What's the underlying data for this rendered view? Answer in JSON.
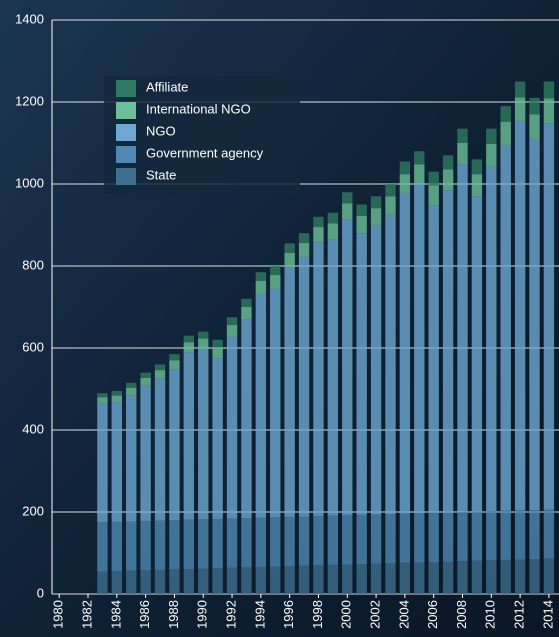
{
  "chart_data": {
    "type": "stacked_bar",
    "x": [
      1983,
      1984,
      1985,
      1986,
      1987,
      1988,
      1989,
      1990,
      1991,
      1992,
      1993,
      1994,
      1995,
      1996,
      1997,
      1998,
      1999,
      2000,
      2001,
      2002,
      2003,
      2004,
      2005,
      2006,
      2007,
      2008,
      2009,
      2010,
      2011,
      2012,
      2013,
      2014
    ],
    "series": [
      {
        "name": "State",
        "color": "#3f6e8f",
        "values": [
          55,
          56,
          57,
          58,
          59,
          60,
          61,
          62,
          63,
          64,
          65,
          66,
          67,
          68,
          69,
          70,
          71,
          72,
          73,
          74,
          75,
          76,
          77,
          78,
          79,
          80,
          81,
          82,
          83,
          84,
          85,
          86
        ]
      },
      {
        "name": "Government agency",
        "color": "#4f88b3",
        "values": [
          120,
          120,
          120,
          120,
          120,
          120,
          120,
          120,
          120,
          120,
          120,
          120,
          120,
          120,
          120,
          120,
          120,
          120,
          120,
          120,
          120,
          120,
          120,
          120,
          120,
          120,
          120,
          120,
          120,
          120,
          120,
          120
        ]
      },
      {
        "name": "NGO",
        "color": "#6ea7d2",
        "values": [
          290,
          292,
          308,
          330,
          346,
          368,
          409,
          416,
          392,
          444,
          485,
          547,
          558,
          610,
          631,
          668,
          674,
          721,
          687,
          704,
          730,
          782,
          803,
          750,
          786,
          848,
          769,
          841,
          892,
          949,
          905,
          942
        ]
      },
      {
        "name": "International NGO",
        "color": "#6cbf98",
        "values": [
          15,
          16,
          18,
          19,
          21,
          22,
          24,
          25,
          27,
          28,
          30,
          31,
          33,
          34,
          36,
          37,
          39,
          40,
          42,
          43,
          45,
          46,
          48,
          49,
          51,
          52,
          54,
          55,
          57,
          58,
          60,
          61
        ]
      },
      {
        "name": "Affiliate",
        "color": "#2e7a60",
        "values": [
          10,
          11,
          12,
          13,
          14,
          15,
          16,
          17,
          18,
          19,
          20,
          21,
          22,
          23,
          24,
          25,
          26,
          27,
          28,
          29,
          30,
          31,
          32,
          33,
          34,
          35,
          36,
          37,
          38,
          39,
          40,
          41
        ]
      }
    ],
    "xlim": [
      1979.5,
      2014.7
    ],
    "xticks": [
      1980,
      1982,
      1984,
      1986,
      1988,
      1990,
      1992,
      1994,
      1996,
      1998,
      2000,
      2002,
      2004,
      2006,
      2008,
      2010,
      2012,
      2014
    ],
    "ylim": [
      0,
      1400
    ],
    "yticks": [
      0,
      200,
      400,
      600,
      800,
      1000,
      1200,
      1400
    ],
    "grid": true
  }
}
